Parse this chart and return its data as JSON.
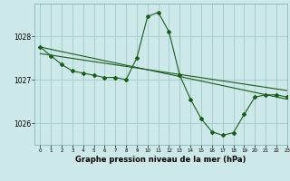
{
  "line1_x": [
    0,
    1,
    2,
    3,
    4,
    5,
    6,
    7,
    8,
    9,
    10,
    11,
    12,
    13,
    14,
    15,
    16,
    17,
    18,
    19,
    20,
    21,
    22,
    23
  ],
  "line1_y": [
    1027.75,
    1027.55,
    1027.35,
    1027.2,
    1027.15,
    1027.1,
    1027.05,
    1027.05,
    1027.0,
    1027.5,
    1028.45,
    1028.55,
    1028.1,
    1027.1,
    1026.55,
    1026.1,
    1025.8,
    1025.72,
    1025.78,
    1026.2,
    1026.6,
    1026.65,
    1026.65,
    1026.6
  ],
  "line2_x": [
    0,
    23
  ],
  "line2_y": [
    1027.75,
    1026.55
  ],
  "line3_x": [
    0,
    23
  ],
  "line3_y": [
    1027.6,
    1026.75
  ],
  "line_color": "#1a5c1a",
  "marker": "D",
  "marker_size": 2.0,
  "background_color": "#cce8e8",
  "grid_color": "#9ac4c4",
  "xlabel": "Graphe pression niveau de la mer (hPa)",
  "xlim": [
    -0.5,
    23
  ],
  "ylim": [
    1025.5,
    1028.75
  ],
  "yticks": [
    1026,
    1027,
    1028
  ],
  "xticks": [
    0,
    1,
    2,
    3,
    4,
    5,
    6,
    7,
    8,
    9,
    10,
    11,
    12,
    13,
    14,
    15,
    16,
    17,
    18,
    19,
    20,
    21,
    22,
    23
  ]
}
